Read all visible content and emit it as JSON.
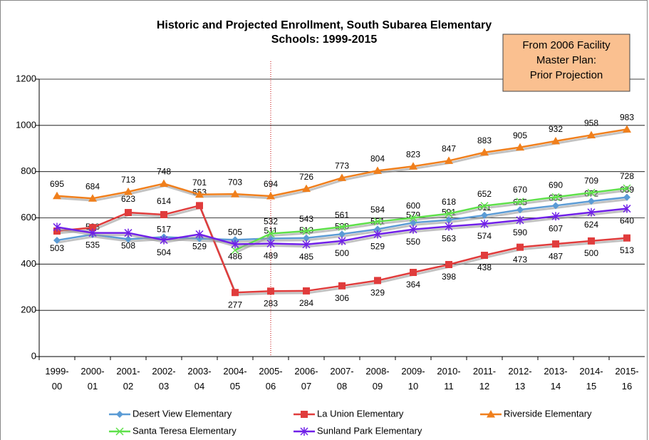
{
  "chart_data": {
    "type": "line",
    "title": [
      "Historic and Projected Enrollment, South Subarea Elementary",
      "Schools: 1999-2015"
    ],
    "annotation": [
      "From 2006 Facility",
      "Master Plan:",
      "Prior Projection"
    ],
    "categories": [
      "1999-00",
      "2000-01",
      "2001-02",
      "2002-03",
      "2003-04",
      "2004-05",
      "2005-06",
      "2006-07",
      "2007-08",
      "2008-09",
      "2009-10",
      "2010-11",
      "2011-12",
      "2012-13",
      "2013-14",
      "2014-15",
      "2015-16"
    ],
    "ylim": [
      0,
      1200
    ],
    "yticks": [
      0,
      200,
      400,
      600,
      800,
      1000,
      1200
    ],
    "grid": true,
    "series": [
      {
        "name": "Desert View Elementary",
        "color": "#5b9bd5",
        "marker": "diamond",
        "values": [
          503,
          528,
          508,
          517,
          510,
          505,
          511,
          513,
          530,
          551,
          579,
          591,
          611,
          635,
          653,
          672,
          689
        ],
        "value_labels": [
          "503",
          "528",
          "508",
          "517",
          null,
          "505",
          "511",
          "513",
          "530",
          "551",
          "579",
          "591",
          "611",
          "635",
          "653",
          "672",
          "689"
        ]
      },
      {
        "name": "La Union Elementary",
        "color": "#e03c3c",
        "marker": "square",
        "values": [
          543,
          558,
          623,
          614,
          653,
          277,
          283,
          284,
          306,
          329,
          364,
          398,
          438,
          473,
          487,
          500,
          513
        ],
        "value_labels": [
          null,
          null,
          "623",
          "614",
          "653",
          "277",
          "283",
          "284",
          "306",
          "329",
          "364",
          "398",
          "438",
          "473",
          "487",
          "500",
          "513"
        ]
      },
      {
        "name": "Riverside Elementary",
        "color": "#f07f1c",
        "marker": "triangle",
        "values": [
          695,
          684,
          713,
          748,
          701,
          703,
          694,
          726,
          773,
          804,
          823,
          847,
          883,
          905,
          932,
          958,
          983
        ],
        "value_labels": [
          "695",
          "684",
          "713",
          "748",
          "701",
          "703",
          "694",
          "726",
          "773",
          "804",
          "823",
          "847",
          "883",
          "905",
          "932",
          "958",
          "983"
        ]
      },
      {
        "name": "Santa Teresa Elementary",
        "color": "#5ee04a",
        "marker": "x",
        "values": [
          null,
          null,
          null,
          null,
          null,
          460,
          532,
          543,
          561,
          584,
          600,
          618,
          652,
          670,
          690,
          709,
          728
        ],
        "value_labels": [
          null,
          null,
          null,
          null,
          null,
          null,
          "532",
          "543",
          "561",
          "584",
          "600",
          "618",
          "652",
          "670",
          "690",
          "709",
          "728"
        ]
      },
      {
        "name": "Sunland Park Elementary",
        "color": "#7020e8",
        "marker": "star",
        "values": [
          560,
          535,
          535,
          504,
          529,
          486,
          489,
          485,
          500,
          529,
          550,
          563,
          574,
          590,
          607,
          624,
          640
        ],
        "value_labels": [
          null,
          "535",
          null,
          "504",
          "529",
          "486",
          "489",
          "485",
          "500",
          "529",
          "550",
          "563",
          "574",
          "590",
          "607",
          "624",
          "640"
        ]
      }
    ]
  }
}
